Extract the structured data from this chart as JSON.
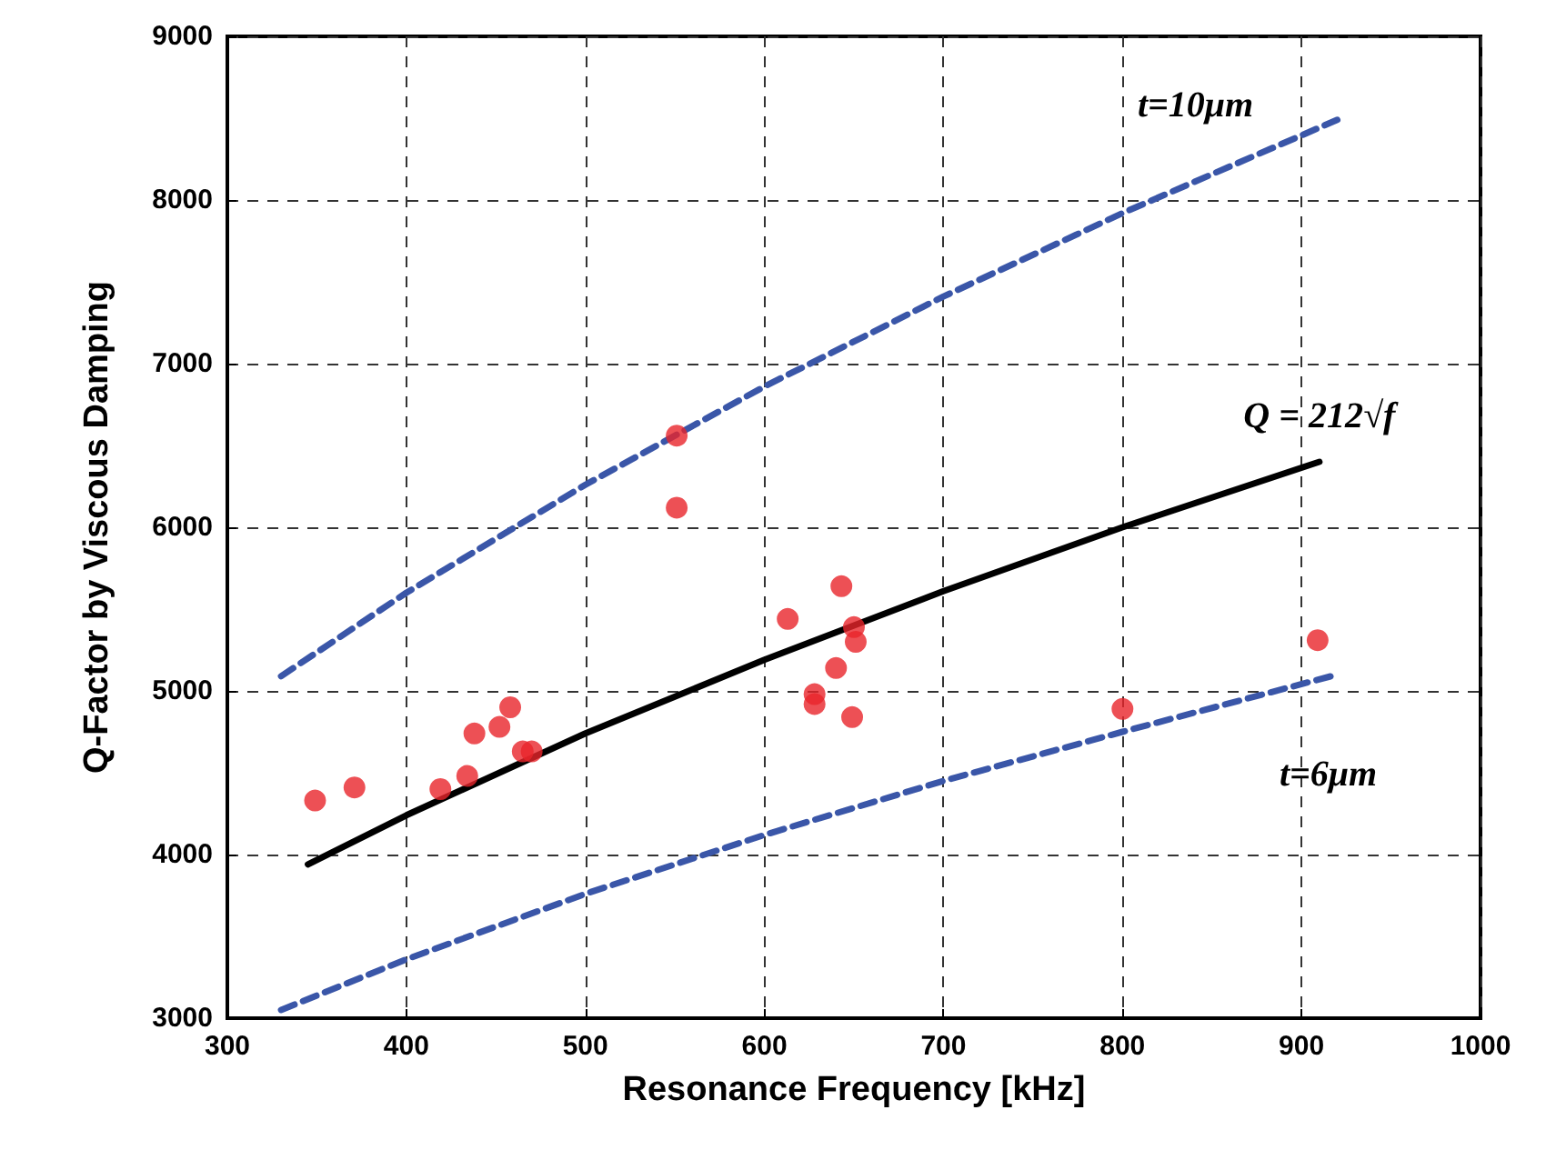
{
  "chart_data": {
    "type": "scatter",
    "xlabel": "Resonance Frequency [kHz]",
    "ylabel": "Q-Factor by Viscous Damping",
    "xlim": [
      300,
      1000
    ],
    "xticks": [
      300,
      400,
      500,
      600,
      700,
      800,
      900,
      1000
    ],
    "ylim": [
      3000,
      9000
    ],
    "yticks": [
      3000,
      4000,
      5000,
      6000,
      7000,
      8000,
      9000
    ],
    "grid": true,
    "series": [
      {
        "type": "line",
        "color": "#3a56a8",
        "line_style": "dashed",
        "marker": "none",
        "x": [
          330,
          400,
          500,
          600,
          700,
          800,
          920
        ],
        "values": [
          5090,
          5600,
          6260,
          6860,
          7410,
          7920,
          8490
        ]
      },
      {
        "type": "line",
        "color": "#3a56a8",
        "line_style": "dashed",
        "marker": "none",
        "x": [
          330,
          400,
          500,
          600,
          700,
          800,
          920
        ],
        "values": [
          3050,
          3360,
          3760,
          4120,
          4450,
          4750,
          5100
        ]
      },
      {
        "type": "line",
        "color": "#000000",
        "line_style": "solid",
        "marker": "none",
        "x": [
          345,
          400,
          500,
          600,
          700,
          800,
          910
        ],
        "values": [
          3940,
          4240,
          4740,
          5190,
          5610,
          6000,
          6400
        ]
      },
      {
        "color": "#e8242a",
        "marker": "circle",
        "x": [
          349,
          371,
          419,
          434,
          438,
          452,
          458,
          465,
          470,
          551,
          551,
          613,
          643,
          650,
          651,
          640,
          628,
          628,
          649,
          800,
          909
        ],
        "values": [
          4330,
          4410,
          4400,
          4480,
          4740,
          4780,
          4900,
          4630,
          4630,
          6120,
          6560,
          5440,
          5640,
          5390,
          5300,
          5140,
          4980,
          4920,
          4840,
          4890,
          5310
        ]
      }
    ],
    "annotations": [
      "t=10μm",
      "t=6μm",
      "Q = 212√f"
    ]
  }
}
